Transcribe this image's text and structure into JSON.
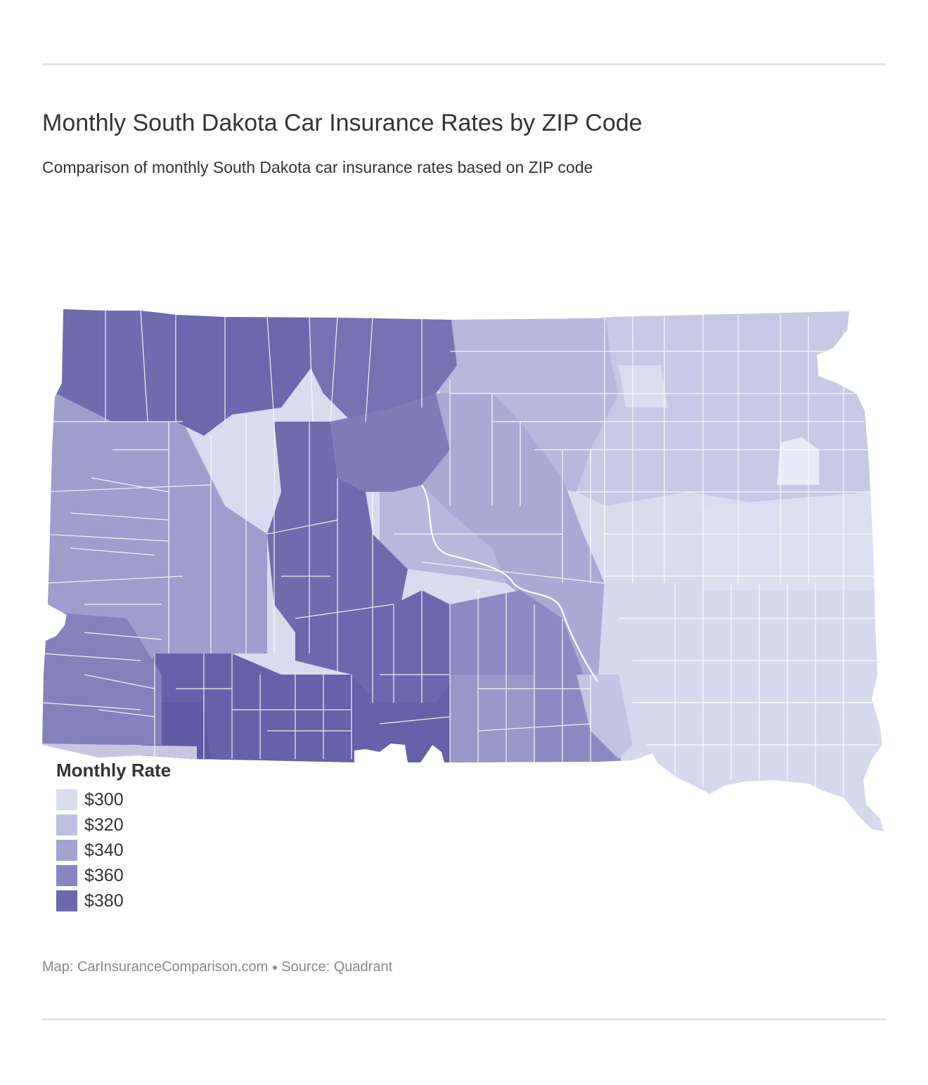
{
  "title": "Monthly South Dakota Car Insurance Rates by ZIP Code",
  "subtitle": "Comparison of monthly South Dakota car insurance rates based on ZIP code",
  "legend": {
    "title": "Monthly Rate",
    "items": [
      {
        "label": "$300",
        "color": "#d9dbef"
      },
      {
        "label": "$320",
        "color": "#bfc0e0"
      },
      {
        "label": "$340",
        "color": "#a3a3d1"
      },
      {
        "label": "$360",
        "color": "#8886c1"
      },
      {
        "label": "$380",
        "color": "#6c68ad"
      }
    ]
  },
  "credits": {
    "map": "Map: CarInsuranceComparison.com",
    "source": "Source: Quadrant"
  }
}
